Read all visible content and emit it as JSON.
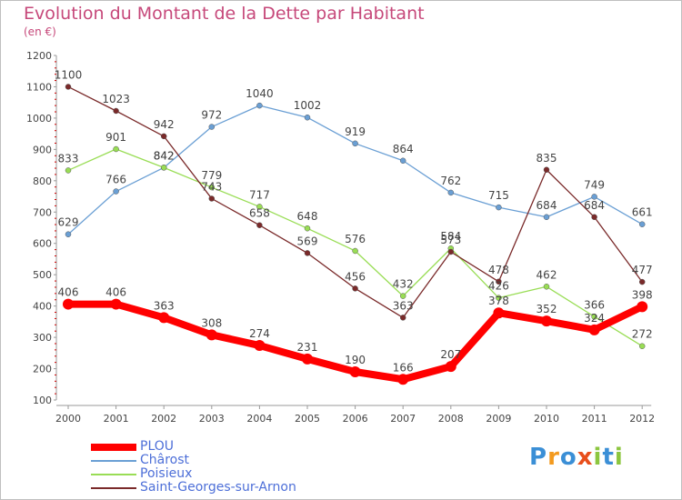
{
  "header": {
    "title": "Evolution du Montant de la Dette par Habitant",
    "unit": "(en €)"
  },
  "logo": {
    "text": "Proxiti",
    "colors": [
      "#3b8fd6",
      "#f39a1e",
      "#3b8fd6",
      "#e84e1b",
      "#8cc63f",
      "#3b8fd6",
      "#8cc63f"
    ]
  },
  "chart_data": {
    "type": "line",
    "x": [
      "2000",
      "2001",
      "2002",
      "2003",
      "2004",
      "2005",
      "2006",
      "2007",
      "2008",
      "2009",
      "2010",
      "2011",
      "2012"
    ],
    "ylim": [
      100,
      1200
    ],
    "yticks": [
      100,
      200,
      300,
      400,
      500,
      600,
      700,
      800,
      900,
      1000,
      1100,
      1200
    ],
    "grid": false,
    "legend_position": "bottom-left",
    "series": [
      {
        "name": "PLOU",
        "color": "#ff0000",
        "values": [
          406,
          406,
          363,
          308,
          274,
          231,
          190,
          166,
          207,
          378,
          352,
          324,
          398
        ]
      },
      {
        "name": "Châro st",
        "color": "#6a9fd4",
        "values": [
          629,
          766,
          842,
          972,
          1040,
          1002,
          919,
          864,
          762,
          715,
          684,
          749,
          661
        ]
      },
      {
        "name": "Poisieux",
        "color": "#99dd55",
        "values": [
          833,
          901,
          842,
          779,
          717,
          648,
          576,
          432,
          584,
          426,
          462,
          366,
          272
        ]
      },
      {
        "name": "Saint-Georges-sur-Arnon",
        "color": "#7a2a2a",
        "values": [
          1100,
          1023,
          942,
          743,
          658,
          569,
          456,
          363,
          573,
          478,
          835,
          684,
          477
        ]
      }
    ]
  }
}
